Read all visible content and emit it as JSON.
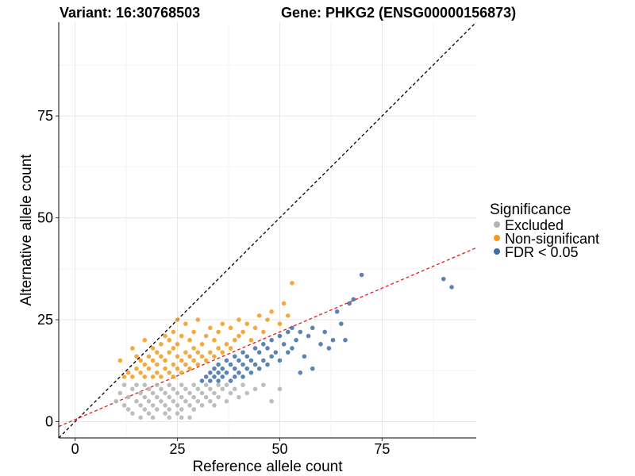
{
  "chart_data": {
    "type": "scatter",
    "title_left": "Variant: 16:30768503",
    "title_right": "Gene: PHKG2 (ENSG00000156873)",
    "xlabel": "Reference allele count",
    "ylabel": "Alternative allele count",
    "xlim": [
      -4,
      98
    ],
    "ylim": [
      -4,
      98
    ],
    "x_ticks": [
      0,
      25,
      50,
      75
    ],
    "y_ticks": [
      0,
      25,
      50,
      75
    ],
    "legend": {
      "title": "Significance",
      "items": [
        {
          "label": "Excluded",
          "color": "#b3b3b3"
        },
        {
          "label": "Non-significant",
          "color": "#f29a1e"
        },
        {
          "label": "FDR < 0.05",
          "color": "#3e6fa3"
        }
      ]
    },
    "reference_lines": [
      {
        "name": "identity",
        "intercept": 0,
        "slope": 1,
        "color": "#000000",
        "dash": "dashed"
      },
      {
        "name": "fit",
        "intercept": 0.5,
        "slope": 0.43,
        "color": "#e41a1c",
        "dash": "dashed"
      }
    ],
    "series": [
      {
        "name": "Excluded",
        "color": "#b3b3b3",
        "points": [
          [
            10,
            5
          ],
          [
            11,
            7
          ],
          [
            12,
            4
          ],
          [
            12,
            9
          ],
          [
            13,
            3
          ],
          [
            13,
            6
          ],
          [
            14,
            8
          ],
          [
            14,
            2
          ],
          [
            15,
            5
          ],
          [
            15,
            9
          ],
          [
            16,
            4
          ],
          [
            16,
            7
          ],
          [
            17,
            3
          ],
          [
            17,
            6
          ],
          [
            17,
            9
          ],
          [
            18,
            2
          ],
          [
            18,
            5
          ],
          [
            18,
            8
          ],
          [
            19,
            4
          ],
          [
            19,
            7
          ],
          [
            20,
            3
          ],
          [
            20,
            6
          ],
          [
            20,
            9
          ],
          [
            21,
            5
          ],
          [
            21,
            8
          ],
          [
            22,
            2
          ],
          [
            22,
            4
          ],
          [
            22,
            7
          ],
          [
            23,
            3
          ],
          [
            23,
            6
          ],
          [
            23,
            9
          ],
          [
            24,
            5
          ],
          [
            24,
            8
          ],
          [
            25,
            2
          ],
          [
            25,
            4
          ],
          [
            25,
            7
          ],
          [
            26,
            3
          ],
          [
            26,
            6
          ],
          [
            26,
            9
          ],
          [
            27,
            5
          ],
          [
            27,
            8
          ],
          [
            28,
            4
          ],
          [
            28,
            7
          ],
          [
            29,
            3
          ],
          [
            29,
            6
          ],
          [
            29,
            9
          ],
          [
            30,
            5
          ],
          [
            30,
            8
          ],
          [
            31,
            4
          ],
          [
            31,
            7
          ],
          [
            32,
            6
          ],
          [
            32,
            9
          ],
          [
            33,
            5
          ],
          [
            33,
            8
          ],
          [
            34,
            4
          ],
          [
            34,
            7
          ],
          [
            35,
            6
          ],
          [
            35,
            9
          ],
          [
            36,
            8
          ],
          [
            37,
            5
          ],
          [
            37,
            9
          ],
          [
            38,
            7
          ],
          [
            39,
            8
          ],
          [
            40,
            6
          ],
          [
            41,
            9
          ],
          [
            42,
            7
          ],
          [
            44,
            8
          ],
          [
            46,
            9
          ],
          [
            50,
            8
          ],
          [
            48,
            5
          ],
          [
            26,
            1
          ],
          [
            19,
            1
          ],
          [
            16,
            1
          ],
          [
            23,
            1
          ],
          [
            28,
            1
          ]
        ]
      },
      {
        "name": "Non-significant",
        "color": "#f29a1e",
        "points": [
          [
            11,
            15
          ],
          [
            12,
            11
          ],
          [
            13,
            12
          ],
          [
            14,
            18
          ],
          [
            14,
            11
          ],
          [
            15,
            13
          ],
          [
            15,
            16
          ],
          [
            16,
            12
          ],
          [
            16,
            15
          ],
          [
            17,
            11
          ],
          [
            17,
            14
          ],
          [
            17,
            20
          ],
          [
            18,
            13
          ],
          [
            18,
            16
          ],
          [
            19,
            11
          ],
          [
            19,
            15
          ],
          [
            19,
            18
          ],
          [
            20,
            12
          ],
          [
            20,
            14
          ],
          [
            20,
            17
          ],
          [
            21,
            11
          ],
          [
            21,
            16
          ],
          [
            21,
            19
          ],
          [
            22,
            13
          ],
          [
            22,
            15
          ],
          [
            22,
            21
          ],
          [
            23,
            12
          ],
          [
            23,
            17
          ],
          [
            23,
            20
          ],
          [
            24,
            11
          ],
          [
            24,
            14
          ],
          [
            24,
            18
          ],
          [
            24,
            22
          ],
          [
            25,
            13
          ],
          [
            25,
            16
          ],
          [
            25,
            19
          ],
          [
            25,
            25
          ],
          [
            26,
            12
          ],
          [
            26,
            15
          ],
          [
            26,
            21
          ],
          [
            27,
            14
          ],
          [
            27,
            17
          ],
          [
            27,
            24
          ],
          [
            28,
            13
          ],
          [
            28,
            16
          ],
          [
            28,
            20
          ],
          [
            29,
            15
          ],
          [
            29,
            18
          ],
          [
            29,
            22
          ],
          [
            30,
            14
          ],
          [
            30,
            17
          ],
          [
            30,
            25
          ],
          [
            31,
            16
          ],
          [
            31,
            19
          ],
          [
            32,
            15
          ],
          [
            32,
            21
          ],
          [
            33,
            17
          ],
          [
            33,
            23
          ],
          [
            34,
            16
          ],
          [
            34,
            20
          ],
          [
            35,
            18
          ],
          [
            35,
            22
          ],
          [
            36,
            17
          ],
          [
            36,
            24
          ],
          [
            37,
            19
          ],
          [
            38,
            18
          ],
          [
            38,
            23
          ],
          [
            39,
            20
          ],
          [
            40,
            21
          ],
          [
            40,
            25
          ],
          [
            41,
            22
          ],
          [
            42,
            24
          ],
          [
            43,
            20
          ],
          [
            44,
            23
          ],
          [
            45,
            26
          ],
          [
            46,
            22
          ],
          [
            47,
            25
          ],
          [
            48,
            27
          ],
          [
            50,
            24
          ],
          [
            52,
            26
          ],
          [
            53,
            34
          ],
          [
            51,
            29
          ]
        ]
      },
      {
        "name": "FDR < 0.05",
        "color": "#3e6fa3",
        "points": [
          [
            31,
            10
          ],
          [
            32,
            11
          ],
          [
            33,
            10
          ],
          [
            33,
            12
          ],
          [
            34,
            11
          ],
          [
            34,
            13
          ],
          [
            35,
            10
          ],
          [
            35,
            12
          ],
          [
            35,
            14
          ],
          [
            36,
            11
          ],
          [
            36,
            13
          ],
          [
            37,
            12
          ],
          [
            37,
            15
          ],
          [
            38,
            10
          ],
          [
            38,
            14
          ],
          [
            39,
            11
          ],
          [
            39,
            13
          ],
          [
            39,
            16
          ],
          [
            40,
            12
          ],
          [
            40,
            15
          ],
          [
            41,
            11
          ],
          [
            41,
            14
          ],
          [
            41,
            17
          ],
          [
            42,
            13
          ],
          [
            42,
            16
          ],
          [
            43,
            12
          ],
          [
            43,
            15
          ],
          [
            44,
            14
          ],
          [
            44,
            18
          ],
          [
            45,
            13
          ],
          [
            45,
            17
          ],
          [
            46,
            15
          ],
          [
            46,
            19
          ],
          [
            47,
            14
          ],
          [
            47,
            18
          ],
          [
            48,
            16
          ],
          [
            48,
            20
          ],
          [
            49,
            17
          ],
          [
            50,
            15
          ],
          [
            50,
            21
          ],
          [
            51,
            19
          ],
          [
            52,
            17
          ],
          [
            52,
            22
          ],
          [
            53,
            18
          ],
          [
            53,
            23
          ],
          [
            54,
            20
          ],
          [
            55,
            22
          ],
          [
            56,
            16
          ],
          [
            57,
            21
          ],
          [
            58,
            23
          ],
          [
            60,
            19
          ],
          [
            61,
            22
          ],
          [
            63,
            20
          ],
          [
            64,
            27
          ],
          [
            65,
            24
          ],
          [
            67,
            29
          ],
          [
            68,
            30
          ],
          [
            70,
            36
          ],
          [
            90,
            35
          ],
          [
            92,
            33
          ],
          [
            55,
            12
          ],
          [
            58,
            13
          ],
          [
            62,
            18
          ],
          [
            66,
            20
          ]
        ]
      }
    ]
  }
}
